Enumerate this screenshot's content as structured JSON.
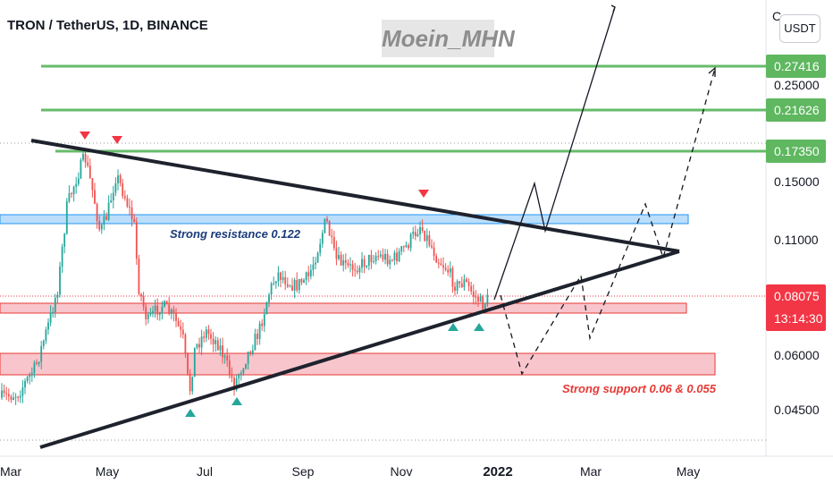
{
  "header": {
    "title": "TRON / TetherUS, 1D, BINANCE"
  },
  "watermark": {
    "text": "Moein_MHN"
  },
  "currency_button": {
    "label": "USDT"
  },
  "axis_cut_label": "C",
  "colors": {
    "candle_up": "#26a69a",
    "candle_down": "#ef5350",
    "resistance_line": "#66bb6a",
    "resistance_zone_fill": "#bbdefb",
    "resistance_zone_border": "#2196f3",
    "support_zone_fill": "#f8c5cc",
    "support_zone_border": "#e53935",
    "trend_line": "#1e222d",
    "price_tag": "#f23645"
  },
  "chart_data": {
    "type": "candlestick",
    "title": "TRON / TetherUS, 1D, BINANCE",
    "x_tick_labels": [
      "Mar",
      "May",
      "Jul",
      "Sep",
      "Nov",
      "2022",
      "Mar",
      "May"
    ],
    "y_tick_labels": [
      "0.25000",
      "0.15000",
      "0.11000",
      "0.06000",
      "0.04500"
    ],
    "y_scale": "log",
    "level_labels": [
      "0.27416",
      "0.21626",
      "0.17350"
    ],
    "current_price": "0.08075",
    "countdown": "13:14:30",
    "annotations": {
      "resistance": "Strong resistance 0.122",
      "support": "Strong support 0.06 & 0.055"
    },
    "grid": false
  }
}
